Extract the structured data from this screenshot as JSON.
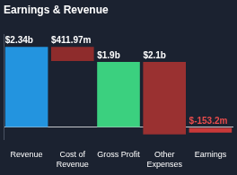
{
  "chart_data": {
    "type": "waterfall",
    "title": "Earnings & Revenue",
    "categories": [
      "Revenue",
      "Cost of Revenue",
      "Gross Profit",
      "Other Expenses",
      "Earnings"
    ],
    "values": [
      2.34,
      0.41197,
      1.9,
      2.1,
      -0.1532
    ],
    "value_labels": [
      "$2.34b",
      "$411.97m",
      "$1.9b",
      "$2.1b",
      "$-153.2m"
    ],
    "colors": [
      "#2394df",
      "#8e2c2c",
      "#3bd07f",
      "#9a3131",
      "#c93838"
    ],
    "ylim": [
      -0.35,
      2.7
    ],
    "yticks": [
      0
    ],
    "grid": true,
    "data_labels": true,
    "tick_labels": "x"
  }
}
